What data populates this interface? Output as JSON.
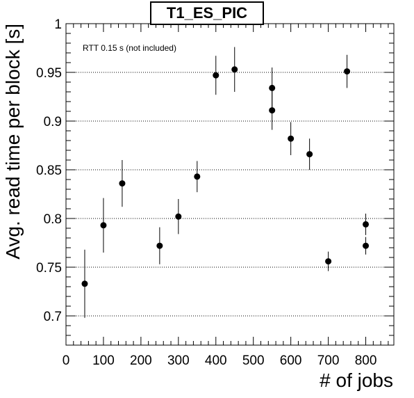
{
  "chart_data": {
    "type": "scatter",
    "title": "T1_ES_PIC",
    "annotation": "RTT 0.15 s (not included)",
    "xlabel": "# of jobs",
    "ylabel": "Avg. read time per block [s]",
    "xlim": [
      0,
      875
    ],
    "ylim": [
      0.67,
      1.0
    ],
    "x_ticks": [
      0,
      100,
      200,
      300,
      400,
      500,
      600,
      700,
      800
    ],
    "y_ticks": [
      0.7,
      0.75,
      0.8,
      0.85,
      0.9,
      0.95,
      1
    ],
    "y_tick_labels": [
      "0.7",
      "0.75",
      "0.8",
      "0.85",
      "0.9",
      "0.95",
      "1"
    ],
    "grid": "horizontal dotted",
    "series": [
      {
        "points": [
          {
            "x": 50,
            "y": 0.733,
            "err": 0.035
          },
          {
            "x": 100,
            "y": 0.793,
            "err": 0.028
          },
          {
            "x": 150,
            "y": 0.836,
            "err": 0.024
          },
          {
            "x": 250,
            "y": 0.772,
            "err": 0.019
          },
          {
            "x": 300,
            "y": 0.802,
            "err": 0.018
          },
          {
            "x": 350,
            "y": 0.843,
            "err": 0.016
          },
          {
            "x": 400,
            "y": 0.947,
            "err": 0.02
          },
          {
            "x": 450,
            "y": 0.953,
            "err": 0.023
          },
          {
            "x": 550,
            "y": 0.934,
            "err": 0.021
          },
          {
            "x": 550,
            "y": 0.911,
            "err": 0.02
          },
          {
            "x": 600,
            "y": 0.882,
            "err": 0.017
          },
          {
            "x": 650,
            "y": 0.866,
            "err": 0.016
          },
          {
            "x": 700,
            "y": 0.756,
            "err": 0.01
          },
          {
            "x": 750,
            "y": 0.951,
            "err": 0.017
          },
          {
            "x": 800,
            "y": 0.794,
            "err": 0.011
          },
          {
            "x": 800,
            "y": 0.772,
            "err": 0.009
          }
        ]
      }
    ]
  },
  "colors": {
    "marker": "#000000",
    "grid": "#000000",
    "frame": "#000000"
  }
}
